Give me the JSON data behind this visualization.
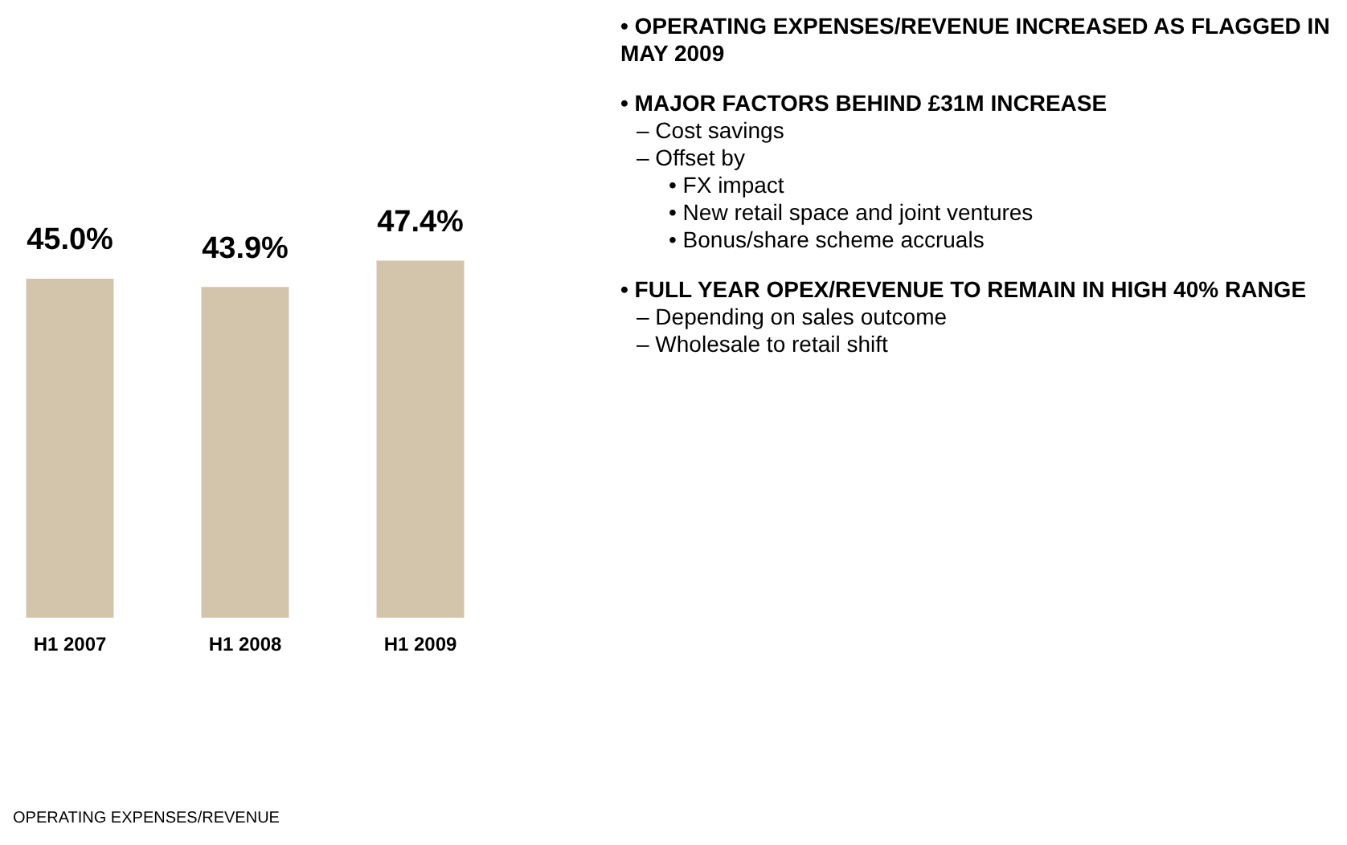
{
  "chart_data": {
    "type": "bar",
    "title": "OPERATING EXPENSES/REVENUE",
    "categories": [
      "H1 2007",
      "H1 2008",
      "H1 2009"
    ],
    "values": [
      45.0,
      43.9,
      47.4
    ],
    "color": "#d3c4ac",
    "data_labels": true,
    "value_labels": [
      "45.0%",
      "43.9%",
      "47.4%"
    ],
    "grid": false,
    "legend": false,
    "annotations": [
      "• OPERATING EXPENSES/REVENUE INCREASED AS FLAGGED IN MAY 2009",
      "• MAJOR FACTORS BEHIND £31M INCREASE",
      "  – Cost savings",
      "  – Offset by",
      "      • FX impact",
      "      • New retail space and joint ventures",
      "      • Bonus/share scheme accruals",
      "• FULL YEAR OPEX/REVENUE TO REMAIN IN HIGH 40% RANGE",
      "  – Depending on sales outcome",
      "  – Wholesale to retail shift"
    ]
  }
}
